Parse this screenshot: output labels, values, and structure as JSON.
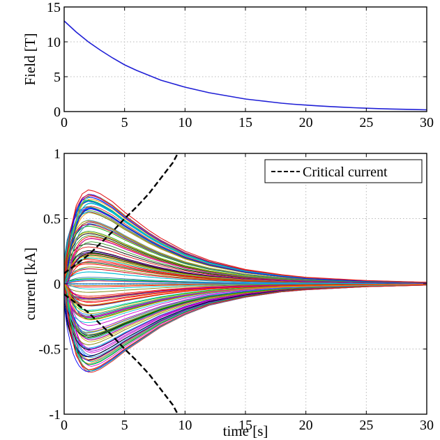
{
  "chart_data": [
    {
      "type": "line",
      "title": "",
      "xlabel": "",
      "ylabel": "Field [T]",
      "xlim": [
        0,
        30
      ],
      "ylim": [
        0,
        15
      ],
      "xticks": [
        0,
        5,
        10,
        15,
        20,
        25,
        30
      ],
      "yticks": [
        0,
        5,
        10,
        15
      ],
      "xtick_labels": [
        "0",
        "5",
        "10",
        "15",
        "20",
        "25",
        "30"
      ],
      "ytick_labels": [
        "0",
        "5",
        "10",
        "15"
      ],
      "grid": true,
      "series": [
        {
          "color": "#1f1fd6",
          "x": [
            0,
            1,
            2,
            3,
            4,
            5,
            6,
            7,
            8,
            9,
            10,
            11,
            12,
            13,
            14,
            15,
            16,
            17,
            18,
            19,
            20,
            21,
            22,
            23,
            24,
            25,
            26,
            27,
            28,
            29,
            30
          ],
          "values": [
            13.0,
            11.4,
            10.0,
            8.8,
            7.7,
            6.7,
            5.9,
            5.2,
            4.5,
            4.0,
            3.5,
            3.1,
            2.7,
            2.4,
            2.1,
            1.8,
            1.6,
            1.4,
            1.2,
            1.05,
            0.93,
            0.82,
            0.72,
            0.63,
            0.55,
            0.48,
            0.42,
            0.37,
            0.33,
            0.29,
            0.25
          ]
        }
      ]
    },
    {
      "type": "line",
      "title": "",
      "xlabel": "time [s]",
      "ylabel": "current [kA]",
      "xlim": [
        0,
        30
      ],
      "ylim": [
        -1,
        1
      ],
      "xticks": [
        0,
        5,
        10,
        15,
        20,
        25,
        30
      ],
      "yticks": [
        -1,
        -0.5,
        0,
        0.5,
        1
      ],
      "xtick_labels": [
        "0",
        "5",
        "10",
        "15",
        "20",
        "25",
        "30"
      ],
      "ytick_labels": [
        "-1",
        "-0.5",
        "0",
        "0.5",
        "1"
      ],
      "grid": true,
      "legend": {
        "position": "top-right",
        "entries": [
          "Critical current"
        ]
      },
      "critical_current": {
        "name": "Critical current",
        "color": "#000000",
        "style": "dashed",
        "x": [
          0,
          1,
          2,
          3,
          4,
          5,
          6,
          7,
          8,
          9,
          9.4
        ],
        "upper": [
          0.08,
          0.15,
          0.22,
          0.31,
          0.4,
          0.5,
          0.59,
          0.69,
          0.81,
          0.93,
          1.0
        ],
        "lower": [
          -0.08,
          -0.15,
          -0.22,
          -0.31,
          -0.4,
          -0.5,
          -0.59,
          -0.69,
          -0.81,
          -0.93,
          -1.0
        ]
      },
      "current_envelope": {
        "description_free": true,
        "x": [
          0,
          0.5,
          1,
          1.5,
          2,
          2.5,
          3,
          4,
          5,
          6,
          7,
          8,
          10,
          12,
          15,
          18,
          20,
          25,
          30
        ],
        "max": [
          0,
          0.4,
          0.6,
          0.69,
          0.72,
          0.71,
          0.69,
          0.63,
          0.55,
          0.48,
          0.41,
          0.35,
          0.25,
          0.18,
          0.11,
          0.07,
          0.05,
          0.025,
          0.012
        ],
        "min": [
          0,
          -0.36,
          -0.55,
          -0.63,
          -0.66,
          -0.65,
          -0.63,
          -0.57,
          -0.5,
          -0.44,
          -0.38,
          -0.32,
          -0.23,
          -0.16,
          -0.1,
          -0.06,
          -0.045,
          -0.022,
          -0.01
        ]
      },
      "current_curve_colors": [
        "#e31a1c",
        "#1f78b4",
        "#33a02c",
        "#00bcd4",
        "#d000d0",
        "#c8b400",
        "#000000",
        "#0000ff",
        "#00aa00",
        "#ff0000",
        "#00ced1",
        "#9400d3",
        "#808000",
        "#1e90ff",
        "#ff8c00"
      ]
    }
  ]
}
